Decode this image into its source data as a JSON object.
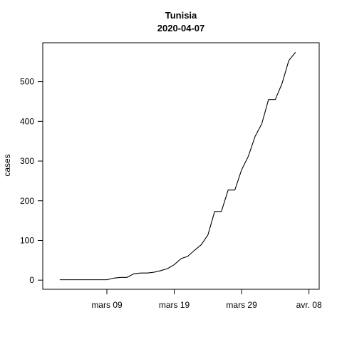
{
  "chart_data": {
    "type": "line",
    "title": "Tunisia",
    "subtitle": "2020-04-07",
    "xlabel": "",
    "ylabel": "cases",
    "x_axis_type": "date",
    "x_ticks": [
      {
        "date": "2020-03-09",
        "label": "mars 09"
      },
      {
        "date": "2020-03-19",
        "label": "mars 19"
      },
      {
        "date": "2020-03-29",
        "label": "mars 29"
      },
      {
        "date": "2020-04-08",
        "label": "avr. 08"
      }
    ],
    "y_ticks": [
      0,
      100,
      200,
      300,
      400,
      500
    ],
    "xlim": [
      "2020-03-01",
      "2020-04-08"
    ],
    "ylim": [
      0,
      575
    ],
    "grid": false,
    "series": [
      {
        "color": "#000000",
        "points": [
          {
            "x": "2020-03-02",
            "y": 1
          },
          {
            "x": "2020-03-03",
            "y": 1
          },
          {
            "x": "2020-03-04",
            "y": 1
          },
          {
            "x": "2020-03-05",
            "y": 1
          },
          {
            "x": "2020-03-06",
            "y": 1
          },
          {
            "x": "2020-03-07",
            "y": 1
          },
          {
            "x": "2020-03-08",
            "y": 1
          },
          {
            "x": "2020-03-09",
            "y": 1
          },
          {
            "x": "2020-03-10",
            "y": 5
          },
          {
            "x": "2020-03-11",
            "y": 7
          },
          {
            "x": "2020-03-12",
            "y": 7
          },
          {
            "x": "2020-03-13",
            "y": 16
          },
          {
            "x": "2020-03-14",
            "y": 18
          },
          {
            "x": "2020-03-15",
            "y": 18
          },
          {
            "x": "2020-03-16",
            "y": 20
          },
          {
            "x": "2020-03-17",
            "y": 24
          },
          {
            "x": "2020-03-18",
            "y": 29
          },
          {
            "x": "2020-03-19",
            "y": 39
          },
          {
            "x": "2020-03-20",
            "y": 54
          },
          {
            "x": "2020-03-21",
            "y": 60
          },
          {
            "x": "2020-03-22",
            "y": 75
          },
          {
            "x": "2020-03-23",
            "y": 89
          },
          {
            "x": "2020-03-24",
            "y": 114
          },
          {
            "x": "2020-03-25",
            "y": 173
          },
          {
            "x": "2020-03-26",
            "y": 173
          },
          {
            "x": "2020-03-27",
            "y": 227
          },
          {
            "x": "2020-03-28",
            "y": 227
          },
          {
            "x": "2020-03-29",
            "y": 278
          },
          {
            "x": "2020-03-30",
            "y": 312
          },
          {
            "x": "2020-03-31",
            "y": 362
          },
          {
            "x": "2020-04-01",
            "y": 394
          },
          {
            "x": "2020-04-02",
            "y": 455
          },
          {
            "x": "2020-04-03",
            "y": 455
          },
          {
            "x": "2020-04-04",
            "y": 495
          },
          {
            "x": "2020-04-05",
            "y": 553
          },
          {
            "x": "2020-04-06",
            "y": 574
          }
        ]
      }
    ]
  }
}
